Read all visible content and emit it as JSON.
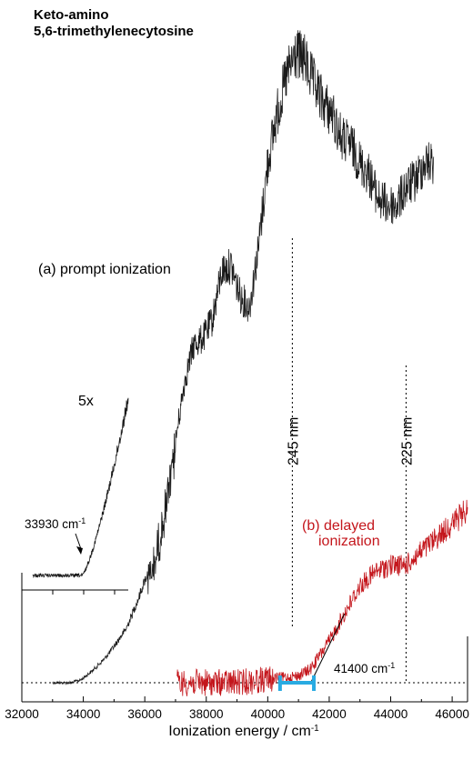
{
  "chart_data": {
    "type": "line",
    "title_lines": [
      "Keto-amino",
      "5,6-trimethylenecytosine"
    ],
    "xlabel": "Ionization energy / cm",
    "xlabel_sup": "-1",
    "xlim": [
      32000,
      46500
    ],
    "xticks": [
      32000,
      34000,
      36000,
      38000,
      40000,
      42000,
      44000,
      46000
    ],
    "colors": {
      "prompt": "#1a1a1a",
      "delayed": "#c4161c",
      "bar": "#29abe2"
    },
    "series": [
      {
        "name": "(a) prompt ionization",
        "trace": [
          [
            33000,
            0.0
          ],
          [
            33600,
            0.0
          ],
          [
            33930,
            0.005
          ],
          [
            34300,
            0.02
          ],
          [
            34700,
            0.04
          ],
          [
            35000,
            0.06
          ],
          [
            35400,
            0.09
          ],
          [
            35800,
            0.14
          ],
          [
            36000,
            0.17
          ],
          [
            36200,
            0.19
          ],
          [
            36400,
            0.23
          ],
          [
            36700,
            0.3
          ],
          [
            37000,
            0.4
          ],
          [
            37300,
            0.5
          ],
          [
            37600,
            0.56
          ],
          [
            37900,
            0.57
          ],
          [
            38200,
            0.6
          ],
          [
            38500,
            0.68
          ],
          [
            38800,
            0.69
          ],
          [
            39100,
            0.64
          ],
          [
            39400,
            0.62
          ],
          [
            39700,
            0.72
          ],
          [
            40000,
            0.86
          ],
          [
            40300,
            0.94
          ],
          [
            40600,
            1.0
          ],
          [
            40900,
            1.04
          ],
          [
            41200,
            1.03
          ],
          [
            41500,
            0.99
          ],
          [
            41800,
            0.96
          ],
          [
            42100,
            0.94
          ],
          [
            42400,
            0.9
          ],
          [
            42700,
            0.89
          ],
          [
            43000,
            0.86
          ],
          [
            43300,
            0.84
          ],
          [
            43600,
            0.8
          ],
          [
            43900,
            0.79
          ],
          [
            44200,
            0.79
          ],
          [
            44500,
            0.82
          ],
          [
            44800,
            0.83
          ],
          [
            45100,
            0.86
          ],
          [
            45400,
            0.86
          ]
        ]
      },
      {
        "name": "(b) delayed ionization",
        "trace": [
          [
            37050,
            0.0
          ],
          [
            38000,
            0.0
          ],
          [
            39000,
            0.0
          ],
          [
            40000,
            0.005
          ],
          [
            41000,
            0.01
          ],
          [
            41400,
            0.02
          ],
          [
            42000,
            0.06
          ],
          [
            42500,
            0.1
          ],
          [
            43000,
            0.14
          ],
          [
            43500,
            0.16
          ],
          [
            44000,
            0.17
          ],
          [
            44500,
            0.17
          ],
          [
            45000,
            0.19
          ],
          [
            45500,
            0.21
          ],
          [
            46000,
            0.23
          ],
          [
            46500,
            0.25
          ]
        ]
      }
    ],
    "inset": {
      "magnification": "5x",
      "xlim": [
        32000,
        36000
      ],
      "onset_label": "33930 cm",
      "onset_value": 33930
    },
    "annotations": {
      "prompt": "(a) prompt ionization",
      "delayed_1": "(b) delayed",
      "delayed_2": "ionization",
      "nm1": "245 nm",
      "nm1_x": 40800,
      "nm2": "225 nm",
      "nm2_x": 44500,
      "threshold_label": "41400 cm",
      "threshold_value": 41400,
      "threshold_bar": [
        40400,
        41500
      ],
      "sup": "-1"
    }
  }
}
